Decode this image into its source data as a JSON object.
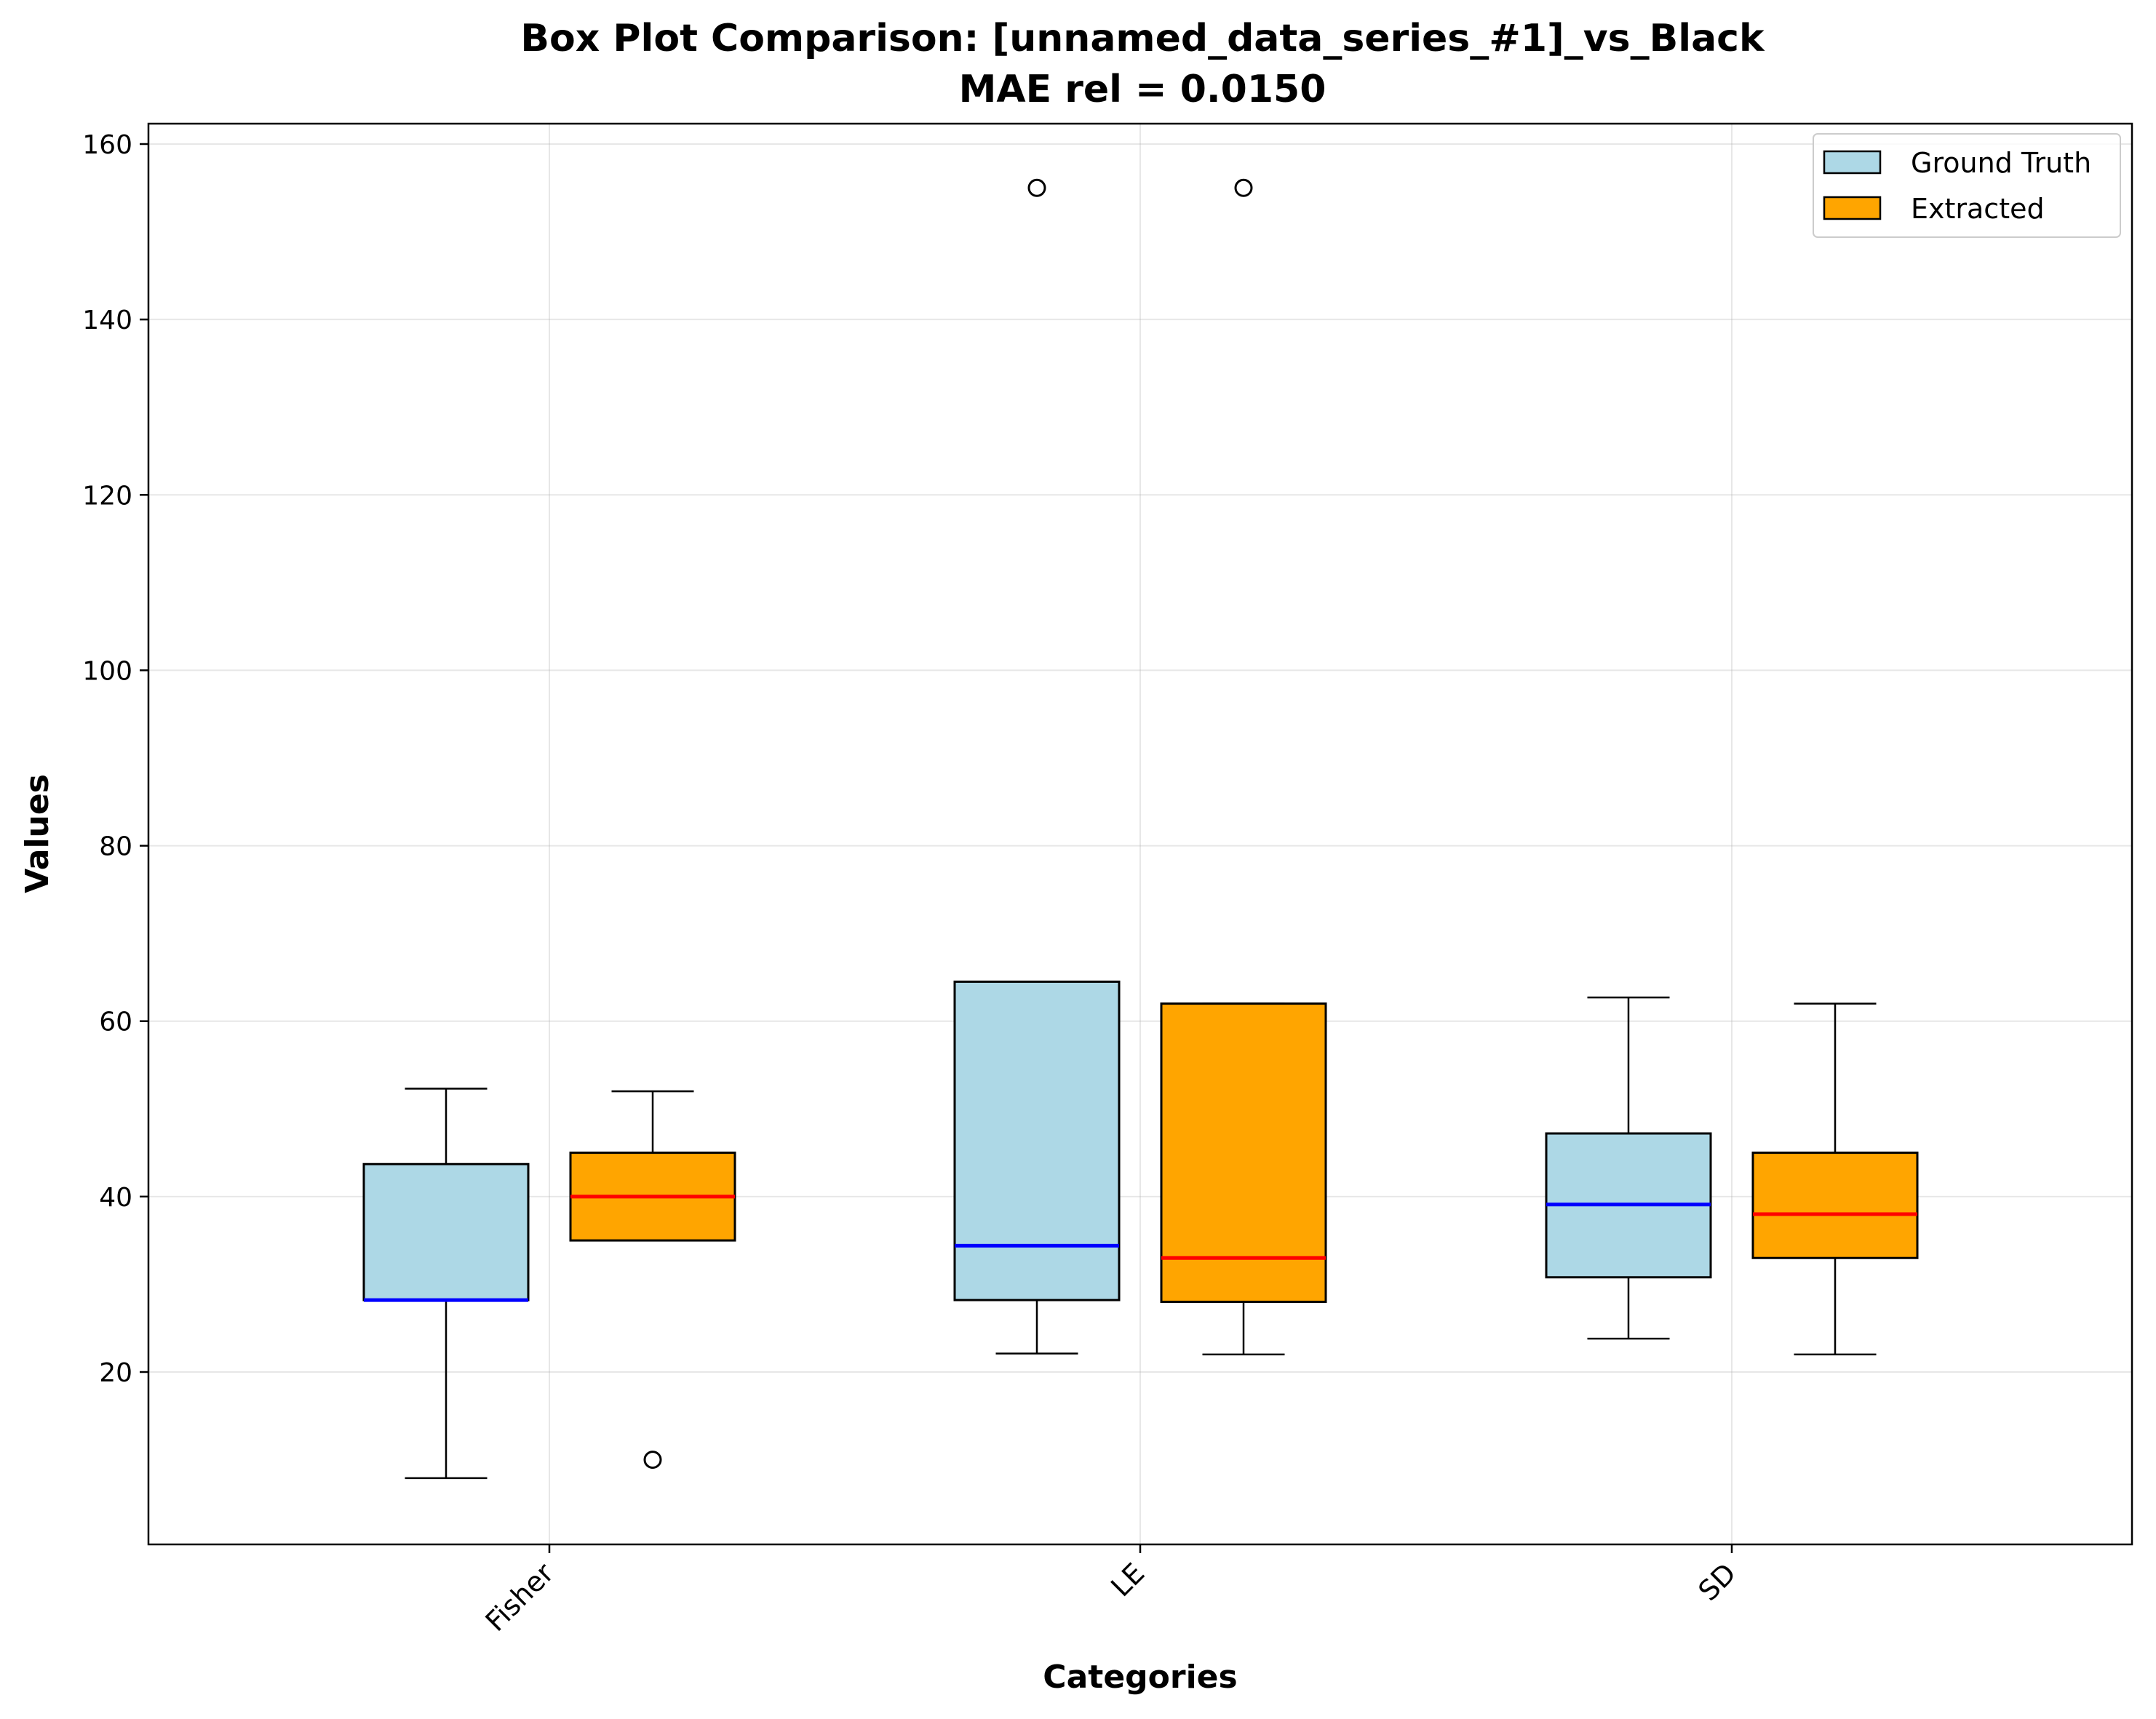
{
  "chart_data": {
    "type": "box",
    "title_line1": "Box Plot Comparison: [unnamed_data_series_#1]_vs_Black",
    "title_line2": "MAE rel = 0.0150",
    "xlabel": "Categories",
    "ylabel": "Values",
    "categories": [
      "Fisher",
      "LE",
      "SD"
    ],
    "ylim": [
      0,
      162.5
    ],
    "yticks": [
      20,
      40,
      60,
      80,
      100,
      120,
      140,
      160
    ],
    "grid": true,
    "legend_position": "top-right",
    "series": [
      {
        "name": "Ground Truth",
        "fill": "#add8e6",
        "median_color": "#0000ff",
        "boxes": [
          {
            "whisker_low": 7.9,
            "q1": 28.2,
            "median": 28.2,
            "q3": 43.7,
            "whisker_high": 52.3,
            "outliers": []
          },
          {
            "whisker_low": 22.1,
            "q1": 28.2,
            "median": 34.4,
            "q3": 64.5,
            "whisker_high": 64.5,
            "outliers": [
              155.0
            ]
          },
          {
            "whisker_low": 23.8,
            "q1": 30.8,
            "median": 39.1,
            "q3": 47.2,
            "whisker_high": 62.7,
            "outliers": []
          }
        ]
      },
      {
        "name": "Extracted",
        "fill": "#ffa500",
        "median_color": "#ff0000",
        "boxes": [
          {
            "whisker_low": 35.0,
            "q1": 35.0,
            "median": 40.0,
            "q3": 45.0,
            "whisker_high": 52.0,
            "outliers": [
              10.0
            ]
          },
          {
            "whisker_low": 22.0,
            "q1": 28.0,
            "median": 33.0,
            "q3": 62.0,
            "whisker_high": 62.0,
            "outliers": [
              155.0
            ]
          },
          {
            "whisker_low": 22.0,
            "q1": 33.0,
            "median": 38.0,
            "q3": 45.0,
            "whisker_high": 62.0,
            "outliers": []
          }
        ]
      }
    ]
  }
}
